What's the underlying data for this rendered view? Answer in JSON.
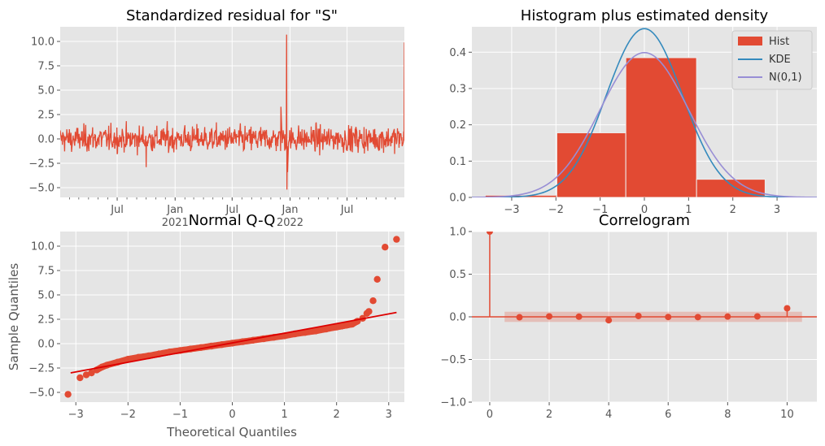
{
  "colors": {
    "panel_bg": "#e5e5e5",
    "grid": "#ffffff",
    "primary": "#e24a33",
    "kde": "#348abd",
    "normal": "#988ed5",
    "qq_line": "#dd0000",
    "text": "#555555"
  },
  "chart_data": [
    {
      "id": "resid",
      "type": "line",
      "title": "Standardized residual for \"S\"",
      "xlabel": "",
      "ylabel": "",
      "x_ticks": [
        {
          "label": "Jul",
          "sub": "",
          "date": "2020-07-01"
        },
        {
          "label": "Jan",
          "sub": "2021",
          "date": "2021-01-01"
        },
        {
          "label": "Jul",
          "sub": "",
          "date": "2021-07-01"
        },
        {
          "label": "Jan",
          "sub": "2022",
          "date": "2022-01-01"
        },
        {
          "label": "Jul",
          "sub": "",
          "date": "2022-07-01"
        }
      ],
      "xlim": [
        "2020-01-02",
        "2022-12-30"
      ],
      "ylim": [
        -6,
        11.5
      ],
      "y_ticks": [
        -5.0,
        -2.5,
        0.0,
        2.5,
        5.0,
        7.5,
        10.0
      ],
      "y_tick_labels": [
        "−5.0",
        "−2.5",
        "0.0",
        "2.5",
        "5.0",
        "7.5",
        "10.0"
      ],
      "noise_amplitude": 1.2,
      "spikes": [
        {
          "date": "2020-10-01",
          "value": -2.9
        },
        {
          "date": "2021-12-03",
          "value": 3.3
        },
        {
          "date": "2021-12-21",
          "value": 10.7
        },
        {
          "date": "2021-12-22",
          "value": -5.2
        },
        {
          "date": "2021-12-24",
          "value": -3.4
        },
        {
          "date": "2022-12-30",
          "value": 9.9
        }
      ],
      "grid": true
    },
    {
      "id": "hist",
      "type": "bar",
      "title": "Histogram plus estimated density",
      "xlabel": "",
      "ylabel": "",
      "xlim": [
        -3.9,
        3.9
      ],
      "ylim": [
        0,
        0.47
      ],
      "x_ticks": [
        -3,
        -2,
        -1,
        0,
        1,
        2,
        3
      ],
      "x_tick_labels": [
        "−3",
        "−2",
        "−1",
        "0",
        "1",
        "2",
        "3"
      ],
      "y_ticks": [
        0.0,
        0.1,
        0.2,
        0.3,
        0.4
      ],
      "y_tick_labels": [
        "0.0",
        "0.1",
        "0.2",
        "0.3",
        "0.4"
      ],
      "bins": [
        {
          "x0": -3.6,
          "x1": -1.98,
          "height": 0.006
        },
        {
          "x0": -1.98,
          "x1": -0.42,
          "height": 0.178
        },
        {
          "x0": -0.42,
          "x1": 1.18,
          "height": 0.385
        },
        {
          "x0": 1.18,
          "x1": 2.73,
          "height": 0.05
        }
      ],
      "kde": {
        "name": "KDE",
        "peak": 0.465,
        "sigma": 0.86
      },
      "normal": {
        "name": "N(0,1)",
        "mean": 0,
        "sd": 1
      },
      "legend": [
        "Hist",
        "KDE",
        "N(0,1)"
      ],
      "legend_position": "top-right",
      "grid": true
    },
    {
      "id": "qq",
      "type": "scatter",
      "title": "Normal Q-Q",
      "xlabel": "Theoretical Quantiles",
      "ylabel": "Sample Quantiles",
      "xlim": [
        -3.3,
        3.3
      ],
      "ylim": [
        -6,
        11.5
      ],
      "x_ticks": [
        -3,
        -2,
        -1,
        0,
        1,
        2,
        3
      ],
      "x_tick_labels": [
        "−3",
        "−2",
        "−1",
        "0",
        "1",
        "2",
        "3"
      ],
      "y_ticks": [
        -5.0,
        -2.5,
        0.0,
        2.5,
        5.0,
        7.5,
        10.0
      ],
      "y_tick_labels": [
        "−5.0",
        "−2.5",
        "0.0",
        "2.5",
        "5.0",
        "7.5",
        "10.0"
      ],
      "points": [
        [
          -3.15,
          -5.2
        ],
        [
          -2.92,
          -3.5
        ],
        [
          -2.8,
          -3.2
        ],
        [
          -2.7,
          -3.0
        ],
        [
          -2.6,
          -2.7
        ],
        [
          -2.5,
          -2.4
        ],
        [
          -2.4,
          -2.2
        ],
        [
          -2.2,
          -1.9
        ],
        [
          -2.0,
          -1.6
        ],
        [
          -1.8,
          -1.4
        ],
        [
          -1.6,
          -1.25
        ],
        [
          -1.4,
          -1.05
        ],
        [
          -1.2,
          -0.85
        ],
        [
          -1.0,
          -0.7
        ],
        [
          -0.8,
          -0.55
        ],
        [
          -0.6,
          -0.4
        ],
        [
          -0.4,
          -0.25
        ],
        [
          -0.2,
          -0.1
        ],
        [
          0.0,
          0.05
        ],
        [
          0.2,
          0.2
        ],
        [
          0.4,
          0.35
        ],
        [
          0.6,
          0.5
        ],
        [
          0.8,
          0.65
        ],
        [
          1.0,
          0.8
        ],
        [
          1.2,
          1.0
        ],
        [
          1.4,
          1.15
        ],
        [
          1.6,
          1.3
        ],
        [
          1.8,
          1.5
        ],
        [
          2.0,
          1.7
        ],
        [
          2.1,
          1.8
        ],
        [
          2.2,
          1.9
        ],
        [
          2.3,
          2.0
        ],
        [
          2.4,
          2.3
        ],
        [
          2.5,
          2.6
        ],
        [
          2.58,
          3.1
        ],
        [
          2.62,
          3.3
        ],
        [
          2.7,
          4.4
        ],
        [
          2.78,
          6.6
        ],
        [
          2.93,
          9.9
        ],
        [
          3.15,
          10.7
        ]
      ],
      "reference_line": {
        "x": [
          -3.1,
          3.15
        ],
        "y": [
          -3.0,
          3.2
        ]
      },
      "grid": true
    },
    {
      "id": "corr",
      "type": "stem",
      "title": "Correlogram",
      "xlabel": "",
      "ylabel": "",
      "xlim": [
        -0.6,
        11.0
      ],
      "ylim": [
        -1.0,
        1.0
      ],
      "x_ticks": [
        0,
        2,
        4,
        6,
        8,
        10
      ],
      "x_tick_labels": [
        "0",
        "2",
        "4",
        "6",
        "8",
        "10"
      ],
      "y_ticks": [
        -1.0,
        -0.5,
        0.0,
        0.5,
        1.0
      ],
      "y_tick_labels": [
        "−1.0",
        "−0.5",
        "0.0",
        "0.5",
        "1.0"
      ],
      "lags": [
        0,
        1,
        2,
        3,
        4,
        5,
        6,
        7,
        8,
        9,
        10
      ],
      "values": [
        1.0,
        -0.005,
        0.005,
        0.002,
        -0.04,
        0.01,
        -0.002,
        -0.003,
        0.003,
        0.005,
        0.1
      ],
      "confidence_band": {
        "x0": 0.5,
        "x1": 10.5,
        "lower": -0.06,
        "upper": 0.06
      },
      "grid": true
    }
  ]
}
